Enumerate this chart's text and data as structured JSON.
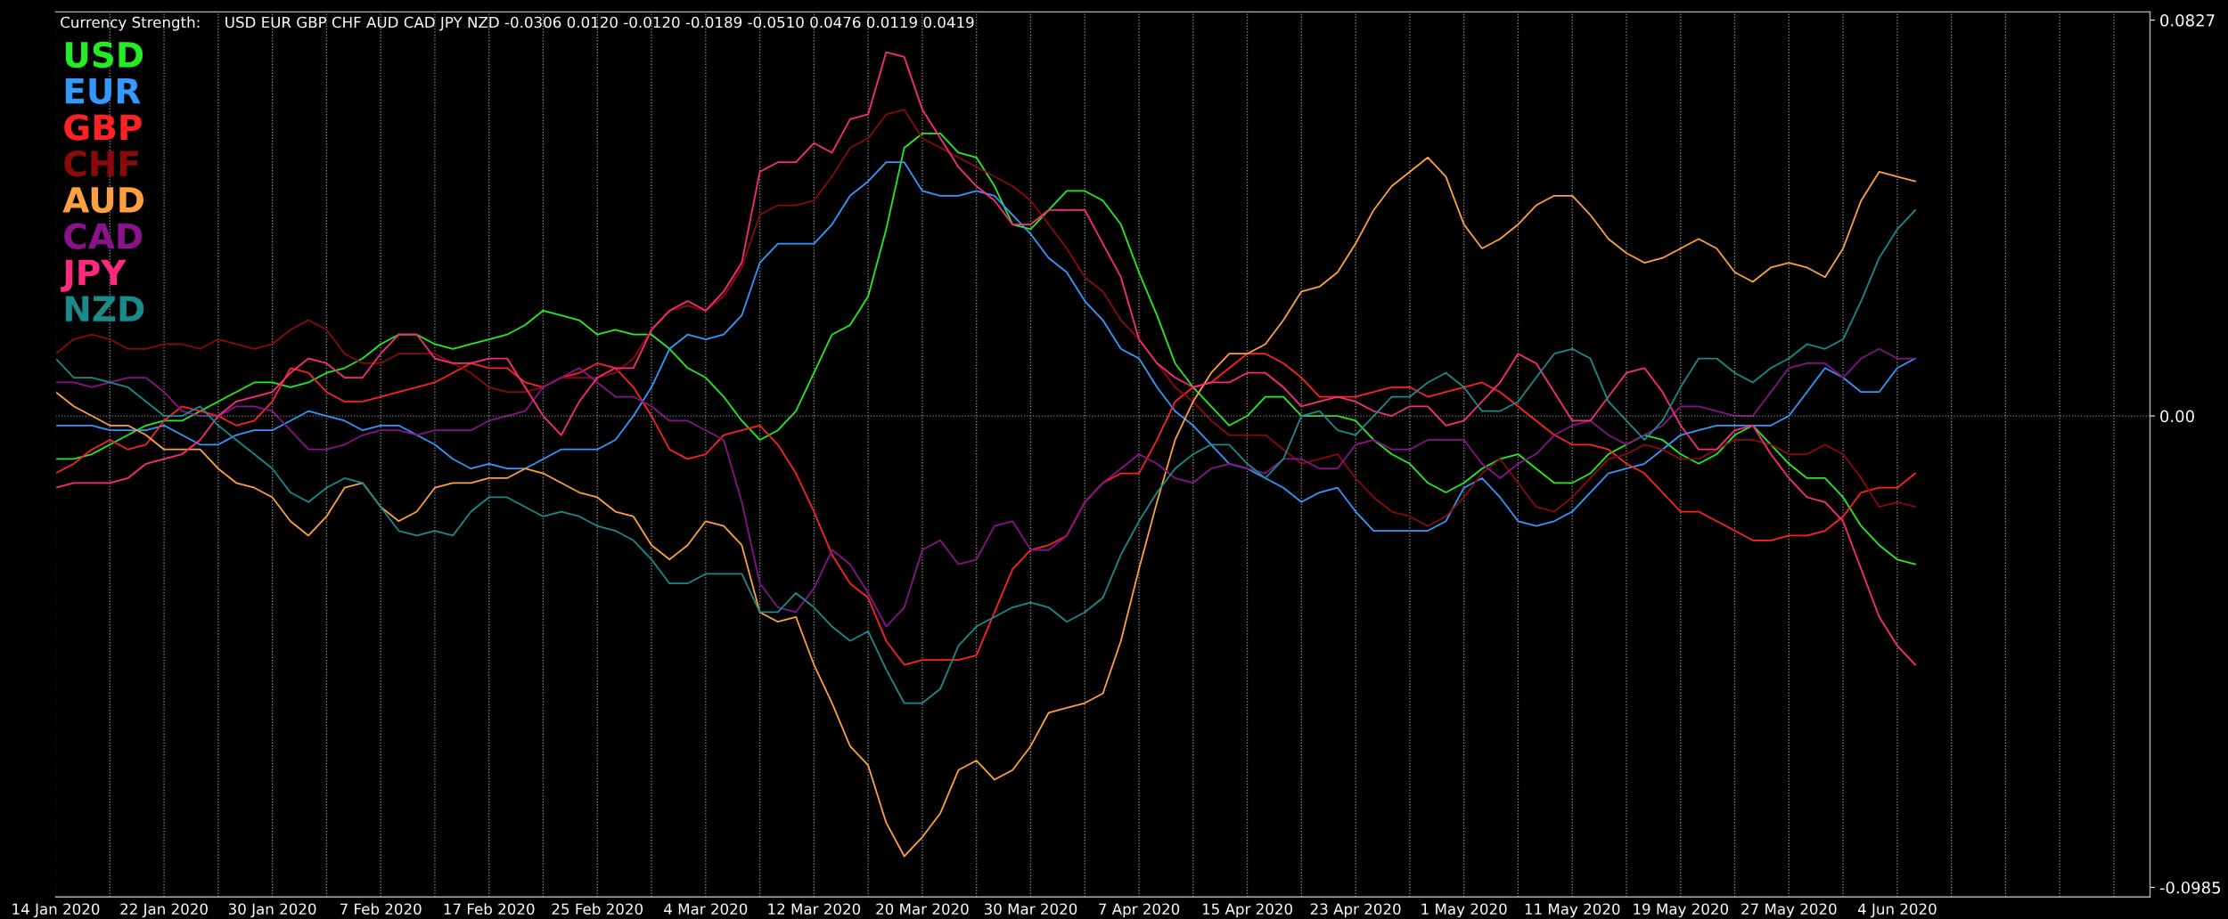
{
  "chart_data": {
    "type": "line",
    "title": "Currency Strength:     USD EUR GBP CHF AUD CAD JPY NZD -0.0306 0.0120 -0.0120 -0.0189 -0.0510 0.0476 0.0119 0.0419",
    "categories": [
      "14 Jan 2020",
      null,
      null,
      null,
      null,
      null,
      "22 Jan 2020",
      null,
      null,
      null,
      null,
      null,
      "30 Jan 2020",
      null,
      null,
      null,
      null,
      null,
      "7 Feb 2020",
      null,
      null,
      null,
      null,
      null,
      "17 Feb 2020",
      null,
      null,
      null,
      null,
      null,
      "25 Feb 2020",
      null,
      null,
      null,
      null,
      null,
      "4 Mar 2020",
      null,
      null,
      null,
      null,
      null,
      "12 Mar 2020",
      null,
      null,
      null,
      null,
      null,
      "20 Mar 2020",
      null,
      null,
      null,
      null,
      null,
      "30 Mar 2020",
      null,
      null,
      null,
      null,
      null,
      "7 Apr 2020",
      null,
      null,
      null,
      null,
      null,
      "15 Apr 2020",
      null,
      null,
      null,
      null,
      null,
      "23 Apr 2020",
      null,
      null,
      null,
      null,
      null,
      "1 May 2020",
      null,
      null,
      null,
      null,
      null,
      "11 May 2020",
      null,
      null,
      null,
      null,
      null,
      "19 May 2020",
      null,
      null,
      null,
      null,
      null,
      "27 May 2020",
      null,
      null,
      null,
      null,
      null,
      "4 Jun 2020",
      null,
      null,
      null,
      null,
      null,
      null,
      null,
      null,
      null,
      null,
      null,
      null,
      null,
      null
    ],
    "series": [
      {
        "name": "USD",
        "color": "#22ee22",
        "values": [
          -0.009,
          -0.009,
          -0.008,
          -0.006,
          -0.004,
          -0.002,
          -0.001,
          -0.001,
          0.001,
          0.003,
          0.005,
          0.007,
          0.007,
          0.006,
          0.007,
          0.009,
          0.01,
          0.012,
          0.015,
          0.017,
          0.017,
          0.015,
          0.014,
          0.015,
          0.016,
          0.017,
          0.019,
          0.022,
          0.021,
          0.02,
          0.017,
          0.018,
          0.017,
          0.017,
          0.014,
          0.01,
          0.008,
          0.004,
          -0.001,
          -0.005,
          -0.003,
          0.001,
          0.009,
          0.017,
          0.019,
          0.025,
          0.039,
          0.056,
          0.059,
          0.059,
          0.055,
          0.054,
          0.048,
          0.04,
          0.039,
          0.043,
          0.047,
          0.047,
          0.045,
          0.04,
          0.03,
          0.021,
          0.011,
          0.006,
          0.002,
          -0.002,
          0.0,
          0.004,
          0.004,
          0.0,
          0.0,
          0.0,
          -0.001,
          -0.005,
          -0.008,
          -0.01,
          -0.014,
          -0.016,
          -0.014,
          -0.011,
          -0.009,
          -0.008,
          -0.011,
          -0.014,
          -0.014,
          -0.012,
          -0.008,
          -0.006,
          -0.004,
          -0.005,
          -0.008,
          -0.01,
          -0.008,
          -0.004,
          -0.002,
          -0.006,
          -0.01,
          -0.013,
          -0.013,
          -0.017,
          -0.023,
          -0.027,
          -0.03,
          -0.031,
          null,
          null,
          null,
          null,
          null,
          null,
          null,
          null,
          null,
          null,
          null,
          null,
          null
        ]
      },
      {
        "name": "EUR",
        "color": "#3399ff",
        "values": [
          -0.002,
          -0.002,
          -0.002,
          -0.003,
          -0.003,
          -0.003,
          -0.002,
          -0.004,
          -0.006,
          -0.006,
          -0.004,
          -0.003,
          -0.003,
          -0.001,
          0.001,
          0.0,
          -0.001,
          -0.003,
          -0.002,
          -0.002,
          -0.004,
          -0.006,
          -0.009,
          -0.011,
          -0.01,
          -0.011,
          -0.011,
          -0.009,
          -0.007,
          -0.007,
          -0.007,
          -0.005,
          0.0,
          0.006,
          0.014,
          0.017,
          0.016,
          0.017,
          0.021,
          0.032,
          0.036,
          0.036,
          0.036,
          0.04,
          0.046,
          0.049,
          0.053,
          0.053,
          0.047,
          0.046,
          0.046,
          0.047,
          0.046,
          0.042,
          0.038,
          0.033,
          0.03,
          0.024,
          0.02,
          0.014,
          0.012,
          0.006,
          0.001,
          -0.002,
          -0.006,
          -0.01,
          -0.011,
          -0.013,
          -0.015,
          -0.018,
          -0.016,
          -0.015,
          -0.02,
          -0.024,
          -0.024,
          -0.024,
          -0.024,
          -0.022,
          -0.015,
          -0.013,
          -0.017,
          -0.022,
          -0.023,
          -0.022,
          -0.02,
          -0.016,
          -0.012,
          -0.011,
          -0.01,
          -0.007,
          -0.004,
          -0.003,
          -0.002,
          -0.002,
          -0.002,
          -0.002,
          0.0,
          0.005,
          0.01,
          0.008,
          0.005,
          0.005,
          0.01,
          0.012,
          null,
          null,
          null,
          null,
          null,
          null,
          null,
          null,
          null,
          null,
          null,
          null,
          null
        ]
      },
      {
        "name": "GBP",
        "color": "#ff2222",
        "values": [
          -0.012,
          -0.01,
          -0.007,
          -0.005,
          -0.007,
          -0.006,
          -0.001,
          0.002,
          0.001,
          0.0,
          -0.002,
          -0.001,
          0.003,
          0.01,
          0.009,
          0.005,
          0.003,
          0.003,
          0.004,
          0.005,
          0.006,
          0.007,
          0.009,
          0.011,
          0.01,
          0.01,
          0.007,
          0.006,
          0.008,
          0.009,
          0.011,
          0.01,
          0.006,
          0.0,
          -0.007,
          -0.009,
          -0.008,
          -0.004,
          -0.003,
          -0.002,
          -0.006,
          -0.012,
          -0.02,
          -0.029,
          -0.035,
          -0.038,
          -0.047,
          -0.052,
          -0.051,
          -0.051,
          -0.051,
          -0.05,
          -0.041,
          -0.032,
          -0.028,
          -0.027,
          -0.025,
          -0.018,
          -0.014,
          -0.012,
          -0.012,
          -0.005,
          0.003,
          0.006,
          0.007,
          0.01,
          0.013,
          0.013,
          0.011,
          0.008,
          0.004,
          0.004,
          0.004,
          0.005,
          0.006,
          0.006,
          0.004,
          0.005,
          0.006,
          0.007,
          0.005,
          0.002,
          -0.001,
          -0.004,
          -0.006,
          -0.006,
          -0.007,
          -0.01,
          -0.012,
          -0.016,
          -0.02,
          -0.02,
          -0.022,
          -0.024,
          -0.026,
          -0.026,
          -0.025,
          -0.025,
          -0.024,
          -0.021,
          -0.016,
          -0.015,
          -0.015,
          -0.012,
          null,
          null,
          null,
          null,
          null,
          null,
          null,
          null,
          null,
          null,
          null,
          null,
          null
        ]
      },
      {
        "name": "CHF",
        "color": "#8b0a0a",
        "values": [
          0.013,
          0.016,
          0.017,
          0.016,
          0.014,
          0.014,
          0.015,
          0.015,
          0.014,
          0.016,
          0.015,
          0.014,
          0.015,
          0.018,
          0.02,
          0.018,
          0.013,
          0.011,
          0.011,
          0.013,
          0.013,
          0.013,
          0.011,
          0.009,
          0.006,
          0.005,
          0.005,
          0.006,
          0.008,
          0.008,
          0.008,
          0.009,
          0.012,
          0.018,
          0.022,
          0.023,
          0.022,
          0.025,
          0.031,
          0.042,
          0.044,
          0.044,
          0.045,
          0.05,
          0.056,
          0.058,
          0.063,
          0.064,
          0.058,
          0.056,
          0.054,
          0.052,
          0.05,
          0.048,
          0.045,
          0.04,
          0.035,
          0.029,
          0.026,
          0.02,
          0.016,
          0.011,
          0.006,
          0.003,
          -0.001,
          -0.004,
          -0.004,
          -0.004,
          -0.007,
          -0.01,
          -0.009,
          -0.008,
          -0.013,
          -0.017,
          -0.02,
          -0.021,
          -0.023,
          -0.021,
          -0.017,
          -0.012,
          -0.009,
          -0.014,
          -0.019,
          -0.02,
          -0.017,
          -0.013,
          -0.009,
          -0.008,
          -0.006,
          -0.007,
          -0.009,
          -0.009,
          -0.007,
          -0.005,
          -0.005,
          -0.006,
          -0.008,
          -0.008,
          -0.006,
          -0.008,
          -0.013,
          -0.019,
          -0.018,
          -0.019,
          null,
          null,
          null,
          null,
          null,
          null,
          null,
          null,
          null,
          null,
          null,
          null,
          null
        ]
      },
      {
        "name": "AUD",
        "color": "#ffa040",
        "values": [
          0.005,
          0.002,
          0.0,
          -0.002,
          -0.002,
          -0.004,
          -0.007,
          -0.007,
          -0.007,
          -0.011,
          -0.014,
          -0.015,
          -0.017,
          -0.022,
          -0.025,
          -0.021,
          -0.015,
          -0.014,
          -0.019,
          -0.022,
          -0.02,
          -0.015,
          -0.014,
          -0.014,
          -0.013,
          -0.013,
          -0.011,
          -0.012,
          -0.014,
          -0.016,
          -0.017,
          -0.02,
          -0.021,
          -0.027,
          -0.03,
          -0.027,
          -0.022,
          -0.023,
          -0.027,
          -0.041,
          -0.043,
          -0.042,
          -0.052,
          -0.06,
          -0.069,
          -0.073,
          -0.085,
          -0.092,
          -0.088,
          -0.083,
          -0.074,
          -0.072,
          -0.076,
          -0.074,
          -0.069,
          -0.062,
          -0.061,
          -0.06,
          -0.058,
          -0.047,
          -0.032,
          -0.018,
          -0.005,
          0.003,
          0.009,
          0.013,
          0.013,
          0.015,
          0.02,
          0.026,
          0.027,
          0.03,
          0.036,
          0.043,
          0.048,
          0.051,
          0.054,
          0.05,
          0.04,
          0.035,
          0.037,
          0.04,
          0.044,
          0.046,
          0.046,
          0.042,
          0.037,
          0.034,
          0.032,
          0.033,
          0.035,
          0.037,
          0.035,
          0.03,
          0.028,
          0.031,
          0.032,
          0.031,
          0.029,
          0.035,
          0.045,
          0.051,
          0.05,
          0.049,
          null,
          null,
          null,
          null,
          null,
          null,
          null,
          null,
          null,
          null,
          null,
          null,
          null
        ]
      },
      {
        "name": "CAD",
        "color": "#8a128a",
        "values": [
          0.007,
          0.007,
          0.006,
          0.007,
          0.008,
          0.008,
          0.005,
          0.001,
          0.0,
          0.0,
          0.002,
          0.002,
          0.001,
          -0.003,
          -0.007,
          -0.007,
          -0.006,
          -0.004,
          -0.003,
          -0.003,
          -0.004,
          -0.003,
          -0.003,
          -0.003,
          -0.001,
          0.0,
          0.001,
          0.006,
          0.008,
          0.01,
          0.007,
          0.004,
          0.004,
          0.002,
          -0.001,
          -0.001,
          -0.003,
          -0.005,
          -0.018,
          -0.035,
          -0.04,
          -0.041,
          -0.036,
          -0.028,
          -0.031,
          -0.037,
          -0.044,
          -0.04,
          -0.028,
          -0.026,
          -0.031,
          -0.03,
          -0.023,
          -0.022,
          -0.028,
          -0.028,
          -0.025,
          -0.018,
          -0.014,
          -0.011,
          -0.008,
          -0.01,
          -0.013,
          -0.014,
          -0.011,
          -0.01,
          -0.011,
          -0.012,
          -0.009,
          -0.009,
          -0.011,
          -0.011,
          -0.006,
          -0.005,
          -0.007,
          -0.007,
          -0.005,
          -0.005,
          -0.005,
          -0.01,
          -0.013,
          -0.01,
          -0.008,
          -0.004,
          -0.002,
          -0.001,
          -0.004,
          -0.006,
          -0.004,
          -0.002,
          0.002,
          0.002,
          0.001,
          0.0,
          0.0,
          0.005,
          0.01,
          0.011,
          0.011,
          0.008,
          0.012,
          0.014,
          0.012,
          0.012,
          null,
          null,
          null,
          null,
          null,
          null,
          null,
          null,
          null,
          null,
          null,
          null,
          null
        ]
      },
      {
        "name": "JPY",
        "color": "#ff2a80",
        "values": [
          -0.015,
          -0.014,
          -0.014,
          -0.014,
          -0.013,
          -0.01,
          -0.009,
          -0.008,
          -0.005,
          0.0,
          0.003,
          0.004,
          0.005,
          0.009,
          0.012,
          0.011,
          0.008,
          0.008,
          0.013,
          0.017,
          0.017,
          0.012,
          0.011,
          0.011,
          0.012,
          0.012,
          0.006,
          0.0,
          -0.004,
          0.003,
          0.008,
          0.01,
          0.01,
          0.018,
          0.022,
          0.024,
          0.022,
          0.026,
          0.032,
          0.051,
          0.053,
          0.053,
          0.057,
          0.055,
          0.062,
          0.063,
          0.076,
          0.075,
          0.064,
          0.058,
          0.052,
          0.048,
          0.045,
          0.04,
          0.04,
          0.043,
          0.043,
          0.043,
          0.036,
          0.029,
          0.016,
          0.011,
          0.008,
          0.006,
          0.007,
          0.007,
          0.009,
          0.009,
          0.006,
          0.002,
          0.003,
          0.004,
          0.003,
          0.001,
          0.0,
          0.002,
          0.002,
          -0.002,
          -0.001,
          0.003,
          0.007,
          0.013,
          0.011,
          0.005,
          -0.001,
          -0.001,
          0.004,
          0.009,
          0.01,
          0.005,
          -0.002,
          -0.007,
          -0.007,
          -0.003,
          -0.002,
          -0.008,
          -0.013,
          -0.017,
          -0.018,
          -0.022,
          -0.032,
          -0.042,
          -0.048,
          -0.052,
          null,
          null,
          null,
          null,
          null,
          null,
          null,
          null,
          null,
          null,
          null,
          null,
          null
        ]
      },
      {
        "name": "NZD",
        "color": "#1a8a8a",
        "values": [
          0.012,
          0.008,
          0.008,
          0.007,
          0.006,
          0.003,
          0.0,
          0.0,
          0.002,
          -0.002,
          -0.005,
          -0.008,
          -0.011,
          -0.016,
          -0.018,
          -0.015,
          -0.013,
          -0.014,
          -0.019,
          -0.024,
          -0.025,
          -0.024,
          -0.025,
          -0.02,
          -0.017,
          -0.017,
          -0.019,
          -0.021,
          -0.02,
          -0.021,
          -0.023,
          -0.024,
          -0.026,
          -0.03,
          -0.035,
          -0.035,
          -0.033,
          -0.033,
          -0.033,
          -0.041,
          -0.041,
          -0.037,
          -0.04,
          -0.044,
          -0.047,
          -0.045,
          -0.053,
          -0.06,
          -0.06,
          -0.057,
          -0.048,
          -0.044,
          -0.042,
          -0.04,
          -0.039,
          -0.04,
          -0.043,
          -0.041,
          -0.038,
          -0.029,
          -0.022,
          -0.016,
          -0.011,
          -0.008,
          -0.006,
          -0.006,
          -0.01,
          -0.013,
          -0.009,
          0.0,
          0.001,
          -0.003,
          -0.004,
          0.0,
          0.004,
          0.004,
          0.007,
          0.009,
          0.006,
          0.001,
          0.001,
          0.003,
          0.008,
          0.013,
          0.014,
          0.012,
          0.003,
          -0.001,
          -0.005,
          -0.001,
          0.006,
          0.012,
          0.012,
          0.009,
          0.007,
          0.01,
          0.012,
          0.015,
          0.014,
          0.016,
          0.024,
          0.033,
          0.039,
          0.043,
          null,
          null,
          null,
          null,
          null,
          null,
          null,
          null,
          null,
          null,
          null,
          null,
          null
        ]
      }
    ],
    "ylim": [
      -0.1005,
      0.0844
    ],
    "yticks": [
      0.0827,
      {
        "value": 0,
        "label": "0.00"
      },
      -0.0985
    ],
    "ref_lines": [
      {
        "axis": "y",
        "value": 0,
        "color": "#808080",
        "line_style": "dotted"
      }
    ],
    "grid": "x",
    "legend": "top left"
  }
}
